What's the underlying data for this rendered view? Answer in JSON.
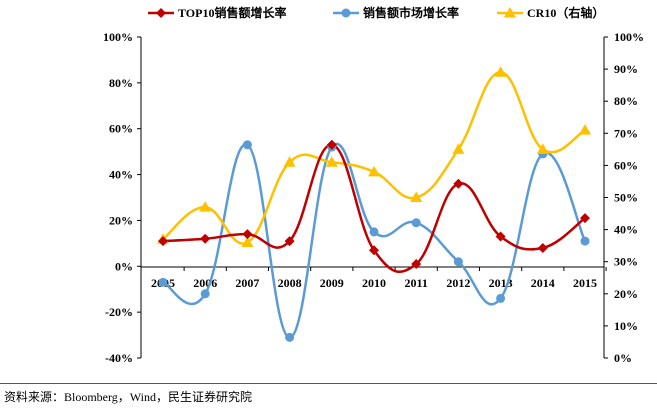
{
  "chart_data": {
    "type": "line",
    "categories": [
      "2005",
      "2006",
      "2007",
      "2008",
      "2009",
      "2010",
      "2011",
      "2012",
      "2013",
      "2014",
      "2015"
    ],
    "series": [
      {
        "name": "TOP10销售额增长率",
        "axis": "left",
        "color": "#c00000",
        "marker": "diamond",
        "values": [
          11,
          12,
          14,
          11,
          53,
          7,
          1,
          36,
          13,
          8,
          21
        ]
      },
      {
        "name": "销售额市场增长率",
        "axis": "left",
        "color": "#5b9bd5",
        "marker": "circle",
        "values": [
          -7,
          -12,
          53,
          -31,
          52,
          15,
          19,
          2,
          -14,
          49,
          11
        ]
      },
      {
        "name": "CR10（右轴）",
        "axis": "right",
        "color": "#ffc000",
        "marker": "triangle",
        "values": [
          37,
          47,
          36,
          61,
          61,
          58,
          50,
          65,
          89,
          65,
          71
        ]
      }
    ],
    "left_axis": {
      "ticks": [
        "-40%",
        "-20%",
        "0%",
        "20%",
        "40%",
        "60%",
        "80%",
        "100%"
      ],
      "ylim": [
        -40,
        100
      ]
    },
    "right_axis": {
      "ticks": [
        "0%",
        "10%",
        "20%",
        "30%",
        "40%",
        "50%",
        "60%",
        "70%",
        "80%",
        "90%",
        "100%"
      ],
      "ylim": [
        0,
        100
      ]
    },
    "legend_position": "top",
    "grid": false
  },
  "source_note": "资料来源：Bloomberg，Wind，民生证券研究院"
}
